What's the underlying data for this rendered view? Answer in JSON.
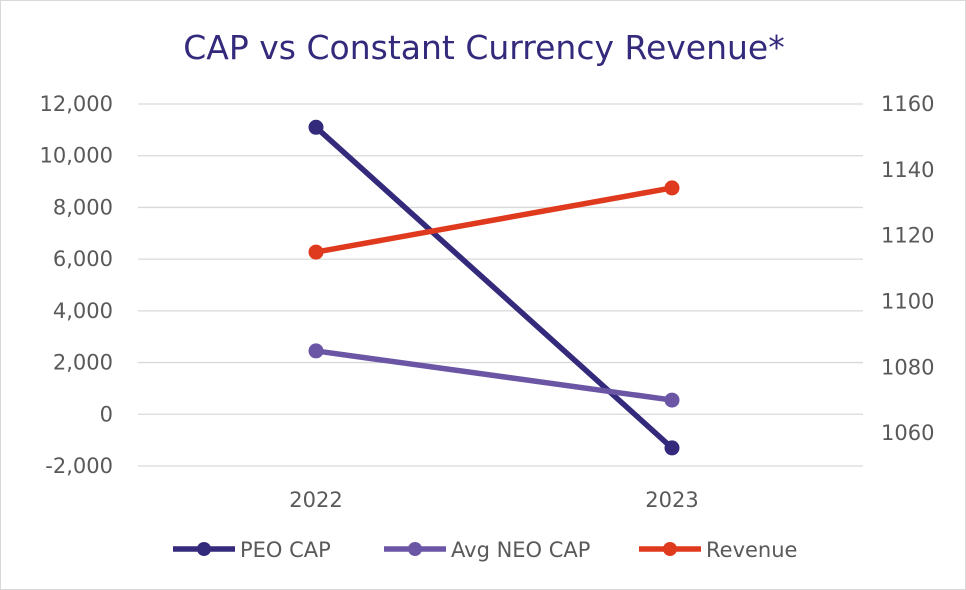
{
  "chart_data": {
    "type": "line",
    "title": "CAP vs Constant Currency Revenue*",
    "categories": [
      "2022",
      "2023"
    ],
    "left_axis": {
      "ticks": [
        -2000,
        0,
        2000,
        4000,
        6000,
        8000,
        10000,
        12000
      ],
      "tick_labels": [
        "-2,000",
        "0",
        "2,000",
        "4,000",
        "6,000",
        "8,000",
        "10,000",
        "12,000"
      ],
      "ylim": [
        -2000,
        12000
      ]
    },
    "right_axis": {
      "ticks": [
        1060,
        1080,
        1100,
        1120,
        1140,
        1160
      ],
      "tick_labels": [
        "1060",
        "1080",
        "1100",
        "1120",
        "1140",
        "1160"
      ],
      "ylim": [
        1050,
        1160
      ]
    },
    "grid": true,
    "legend_position": "bottom",
    "series": [
      {
        "name": "PEO CAP",
        "axis": "left",
        "color": "#332a7c",
        "values": [
          11100,
          -1300
        ]
      },
      {
        "name": "Avg NEO CAP",
        "axis": "left",
        "color": "#6a56a5",
        "values": [
          2450,
          550
        ]
      },
      {
        "name": "Revenue",
        "axis": "right",
        "color": "#e03a1e",
        "values": [
          1115,
          1134.5
        ]
      }
    ],
    "colors": {
      "title": "#332a7c",
      "grid": "#d9d9d9",
      "tick_text": "#595959"
    }
  }
}
